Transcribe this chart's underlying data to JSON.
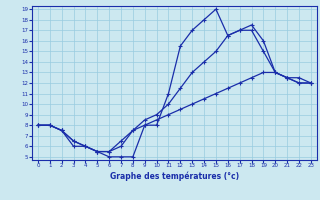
{
  "title": "Graphe des températures (°c)",
  "bg_color": "#cce8f0",
  "line_color": "#1a2eaa",
  "grid_color": "#99cce0",
  "xmin": 0,
  "xmax": 23,
  "ymin": 5,
  "ymax": 19,
  "curve1_x": [
    0,
    1,
    2,
    3,
    4,
    5,
    6,
    7,
    8,
    9,
    10,
    11,
    12,
    13,
    14,
    15,
    16,
    17,
    18,
    19,
    20,
    21,
    22,
    23
  ],
  "curve1_y": [
    8,
    8,
    7.5,
    6,
    6.0,
    5.5,
    5.0,
    5.0,
    5.0,
    8.0,
    8.0,
    11.0,
    15.5,
    17.0,
    18.0,
    19.0,
    16.5,
    17.0,
    17.0,
    15.0,
    13.0,
    12.5,
    12.0,
    12.0
  ],
  "curve2_x": [
    0,
    1,
    2,
    3,
    4,
    5,
    6,
    7,
    8,
    9,
    10,
    11,
    12,
    13,
    14,
    15,
    16,
    17,
    18,
    19,
    20,
    21,
    22,
    23
  ],
  "curve2_y": [
    8,
    8,
    7.5,
    6.5,
    6.0,
    5.5,
    5.5,
    6.5,
    7.5,
    8.0,
    8.5,
    9.0,
    9.5,
    10.0,
    10.5,
    11.0,
    11.5,
    12.0,
    12.5,
    13.0,
    13.0,
    12.5,
    12.0,
    12.0
  ],
  "curve3_x": [
    0,
    1,
    2,
    3,
    4,
    5,
    6,
    7,
    8,
    9,
    10,
    11,
    12,
    13,
    14,
    15,
    16,
    17,
    18,
    19,
    20,
    21,
    22,
    23
  ],
  "curve3_y": [
    8,
    8,
    7.5,
    6.5,
    6.0,
    5.5,
    5.5,
    6.0,
    7.5,
    8.5,
    9.0,
    10.0,
    11.5,
    13.0,
    14.0,
    15.0,
    16.5,
    17.0,
    17.5,
    16.0,
    13.0,
    12.5,
    12.5,
    12.0
  ]
}
